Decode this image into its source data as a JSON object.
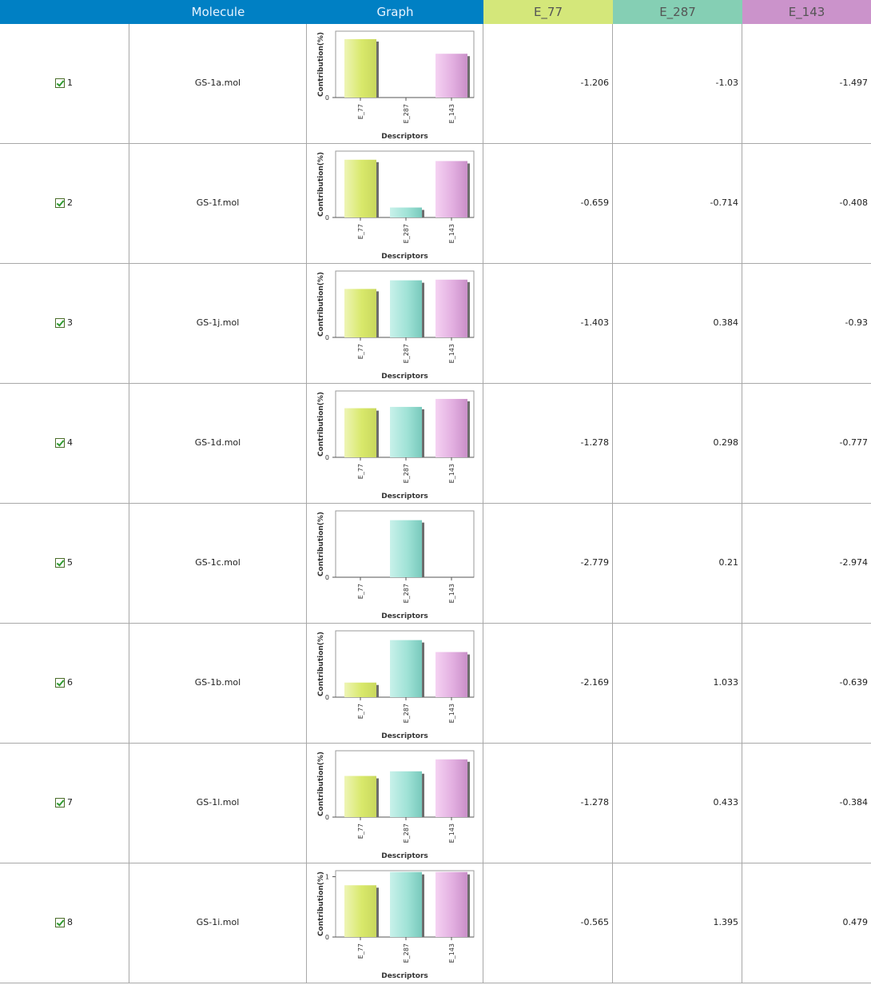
{
  "header": {
    "molecule": "Molecule",
    "graph": "Graph",
    "e77": "E_77",
    "e287": "E_287",
    "e143": "E_143"
  },
  "colors": {
    "header_blue": "#0080c4",
    "e77": "#d4e77a",
    "e287": "#85cfb4",
    "e143": "#cb93cb"
  },
  "chart_labels": {
    "ylabel": "Contribution(%)",
    "xlabel": "Descriptors",
    "categories": [
      "E_77",
      "E_287",
      "E_143"
    ],
    "ytick_zero": "0",
    "ytick_one": "1"
  },
  "rows": [
    {
      "index": "1",
      "molecule": "GS-1a.mol",
      "checked": true,
      "e77": "-1.206",
      "e287": "-1.03",
      "e143": "-1.497"
    },
    {
      "index": "2",
      "molecule": "GS-1f.mol",
      "checked": true,
      "e77": "-0.659",
      "e287": "-0.714",
      "e143": "-0.408"
    },
    {
      "index": "3",
      "molecule": "GS-1j.mol",
      "checked": true,
      "e77": "-1.403",
      "e287": "0.384",
      "e143": "-0.93"
    },
    {
      "index": "4",
      "molecule": "GS-1d.mol",
      "checked": true,
      "e77": "-1.278",
      "e287": "0.298",
      "e143": "-0.777"
    },
    {
      "index": "5",
      "molecule": "GS-1c.mol",
      "checked": true,
      "e77": "-2.779",
      "e287": "0.21",
      "e143": "-2.974"
    },
    {
      "index": "6",
      "molecule": "GS-1b.mol",
      "checked": true,
      "e77": "-2.169",
      "e287": "1.033",
      "e143": "-0.639"
    },
    {
      "index": "7",
      "molecule": "GS-1l.mol",
      "checked": true,
      "e77": "-1.278",
      "e287": "0.433",
      "e143": "-0.384"
    },
    {
      "index": "8",
      "molecule": "GS-1i.mol",
      "checked": true,
      "e77": "-0.565",
      "e287": "1.395",
      "e143": "0.479"
    }
  ],
  "chart_data": [
    {
      "type": "bar",
      "categories": [
        "E_77",
        "E_287",
        "E_143"
      ],
      "values": [
        0.88,
        0,
        0.66
      ],
      "ylabel": "Contribution(%)",
      "xlabel": "Descriptors",
      "ytick_one": false
    },
    {
      "type": "bar",
      "categories": [
        "E_77",
        "E_287",
        "E_143"
      ],
      "values": [
        0.87,
        0.15,
        0.85
      ],
      "ylabel": "Contribution(%)",
      "xlabel": "Descriptors",
      "ytick_one": false
    },
    {
      "type": "bar",
      "categories": [
        "E_77",
        "E_287",
        "E_143"
      ],
      "values": [
        0.73,
        0.86,
        0.87
      ],
      "ylabel": "Contribution(%)",
      "xlabel": "Descriptors",
      "ytick_one": false
    },
    {
      "type": "bar",
      "categories": [
        "E_77",
        "E_287",
        "E_143"
      ],
      "values": [
        0.74,
        0.76,
        0.88
      ],
      "ylabel": "Contribution(%)",
      "xlabel": "Descriptors",
      "ytick_one": false
    },
    {
      "type": "bar",
      "categories": [
        "E_77",
        "E_287",
        "E_143"
      ],
      "values": [
        0,
        0.86,
        0
      ],
      "ylabel": "Contribution(%)",
      "xlabel": "Descriptors",
      "ytick_one": false
    },
    {
      "type": "bar",
      "categories": [
        "E_77",
        "E_287",
        "E_143"
      ],
      "values": [
        0.22,
        0.86,
        0.68
      ],
      "ylabel": "Contribution(%)",
      "xlabel": "Descriptors",
      "ytick_one": false
    },
    {
      "type": "bar",
      "categories": [
        "E_77",
        "E_287",
        "E_143"
      ],
      "values": [
        0.62,
        0.69,
        0.87
      ],
      "ylabel": "Contribution(%)",
      "xlabel": "Descriptors",
      "ytick_one": false
    },
    {
      "type": "bar",
      "categories": [
        "E_77",
        "E_287",
        "E_143"
      ],
      "values": [
        0.78,
        0.98,
        0.98
      ],
      "ylabel": "Contribution(%)",
      "xlabel": "Descriptors",
      "ytick_one": true
    }
  ]
}
